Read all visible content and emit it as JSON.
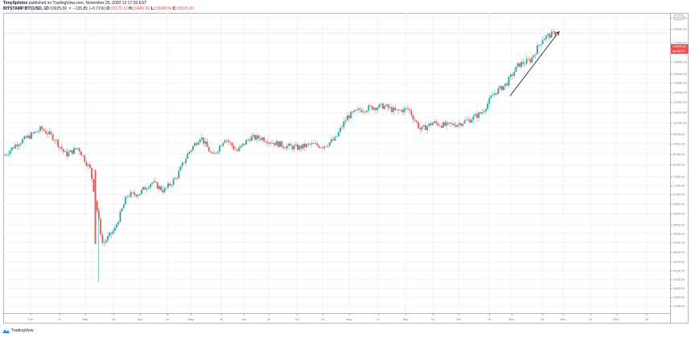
{
  "header": {
    "author": "TonySpilotro",
    "published": " published on TradingView.com, November 25, 2020 12:17:33 EST",
    "symbol": "BITSTAMP:BTCUSD, 1D",
    "last": "19025.00",
    "change_arrow": "▼",
    "change": "−135.85 (−0.71%)",
    "o_label": "O:",
    "o": "19175.13",
    "h_label": "H:",
    "h": "19480.00",
    "l_label": "L:",
    "l": "18648.84",
    "c_label": "C:",
    "c": "19025.00"
  },
  "price_tag": {
    "price": "19025.00",
    "countdown": "06:42:27"
  },
  "currency_badge": "USD",
  "branding": "TradingView",
  "colors": {
    "up": "#26a69a",
    "down": "#ef5350",
    "grid": "#f0f3fa",
    "axis_text": "#787b86"
  },
  "chart_data": {
    "type": "candlestick",
    "title": "BITSTAMP:BTCUSD, 1D",
    "xlabel": "",
    "ylabel": "USD",
    "scale": "log",
    "ylim": [
      3200,
      23000
    ],
    "grid": true,
    "y_ticks": [
      "21000.00",
      "19500.00",
      "17900.00",
      "15800.00",
      "14600.00",
      "13800.00",
      "13000.00",
      "12200.00",
      "11400.00",
      "10700.00",
      "9950.00",
      "9350.00",
      "8750.00",
      "8150.00",
      "7550.00",
      "7150.00",
      "6750.00",
      "6350.00",
      "5950.00",
      "5550.00",
      "5250.00",
      "4950.00",
      "4650.00",
      "4370.00",
      "4130.00",
      "3905.00",
      "3685.00",
      "3485.00",
      "3295.00"
    ],
    "x_ticks": [
      "Feb",
      "17",
      "Mar",
      "16",
      "Apr",
      "14",
      "May",
      "18",
      "Jun",
      "15",
      "Jul",
      "13",
      "Aug",
      "17",
      "Sep",
      "14",
      "Oct",
      "19",
      "Nov",
      "16",
      "Dec",
      "14",
      "2021",
      "18"
    ],
    "series": [
      {
        "name": "BTCUSD",
        "points": [
          {
            "date": "Jan 20",
            "close": 8700
          },
          {
            "date": "Jan 27",
            "close": 9350
          },
          {
            "date": "Feb 3",
            "close": 9800
          },
          {
            "date": "Feb 10",
            "close": 10300
          },
          {
            "date": "Feb 17",
            "close": 9700
          },
          {
            "date": "Feb 24",
            "close": 8700
          },
          {
            "date": "Mar 2",
            "close": 9100
          },
          {
            "date": "Mar 9",
            "close": 7900
          },
          {
            "date": "Mar 12",
            "close": 4900
          },
          {
            "date": "Mar 16",
            "close": 5400
          },
          {
            "date": "Mar 23",
            "close": 6700
          },
          {
            "date": "Mar 30",
            "close": 6800
          },
          {
            "date": "Apr 6",
            "close": 7300
          },
          {
            "date": "Apr 13",
            "close": 6900
          },
          {
            "date": "Apr 20",
            "close": 7500
          },
          {
            "date": "Apr 27",
            "close": 8800
          },
          {
            "date": "May 4",
            "close": 9800
          },
          {
            "date": "May 11",
            "close": 8600
          },
          {
            "date": "May 18",
            "close": 9700
          },
          {
            "date": "May 25",
            "close": 8900
          },
          {
            "date": "Jun 1",
            "close": 9700
          },
          {
            "date": "Jun 8",
            "close": 9700
          },
          {
            "date": "Jun 15",
            "close": 9400
          },
          {
            "date": "Jun 22",
            "close": 9200
          },
          {
            "date": "Jun 29",
            "close": 9100
          },
          {
            "date": "Jul 6",
            "close": 9300
          },
          {
            "date": "Jul 13",
            "close": 9200
          },
          {
            "date": "Jul 20",
            "close": 9600
          },
          {
            "date": "Jul 27",
            "close": 11100
          },
          {
            "date": "Aug 3",
            "close": 11600
          },
          {
            "date": "Aug 10",
            "close": 11800
          },
          {
            "date": "Aug 17",
            "close": 11900
          },
          {
            "date": "Aug 24",
            "close": 11500
          },
          {
            "date": "Aug 31",
            "close": 11700
          },
          {
            "date": "Sep 3",
            "close": 10200
          },
          {
            "date": "Sep 14",
            "close": 10700
          },
          {
            "date": "Sep 21",
            "close": 10500
          },
          {
            "date": "Sep 28",
            "close": 10600
          },
          {
            "date": "Oct 5",
            "close": 10900
          },
          {
            "date": "Oct 12",
            "close": 11400
          },
          {
            "date": "Oct 19",
            "close": 12900
          },
          {
            "date": "Oct 26",
            "close": 13700
          },
          {
            "date": "Nov 2",
            "close": 15500
          },
          {
            "date": "Nov 9",
            "close": 16000
          },
          {
            "date": "Nov 16",
            "close": 18400
          },
          {
            "date": "Nov 23",
            "close": 19025
          }
        ]
      }
    ],
    "annotations": [
      {
        "type": "arrow",
        "from_date": "Nov 1",
        "from_price": 12700,
        "to_date": "Nov 26",
        "to_price": 19200
      }
    ]
  }
}
